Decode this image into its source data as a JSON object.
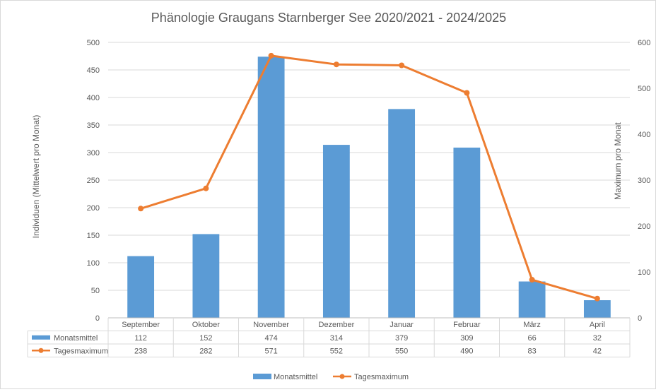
{
  "chart_data": {
    "type": "bar",
    "title": "Phänologie Graugans Starnberger See 2020/2021 - 2024/2025",
    "ylabel": "Individuen (Mittelwert pro Monat)",
    "y2label": "Maximum pro Monat",
    "categories": [
      "September",
      "Oktober",
      "November",
      "Dezember",
      "Januar",
      "Februar",
      "März",
      "April"
    ],
    "ylim": [
      0,
      500
    ],
    "y2lim": [
      0,
      600
    ],
    "yticks": [
      "0",
      "50",
      "100",
      "150",
      "200",
      "250",
      "300",
      "350",
      "400",
      "450",
      "500"
    ],
    "y2ticks": [
      "0",
      "100",
      "200",
      "300",
      "400",
      "500",
      "600"
    ],
    "grid": true,
    "legend_position": "bottom",
    "series": [
      {
        "name": "Monatsmittel",
        "type": "bar",
        "axis": "left",
        "color": "#5b9bd5",
        "values": [
          112,
          152,
          474,
          314,
          379,
          309,
          66,
          32
        ]
      },
      {
        "name": "Tagesmaximum",
        "type": "line",
        "axis": "right",
        "color": "#ed7d31",
        "values": [
          238,
          282,
          571,
          552,
          550,
          490,
          83,
          42
        ]
      }
    ]
  }
}
